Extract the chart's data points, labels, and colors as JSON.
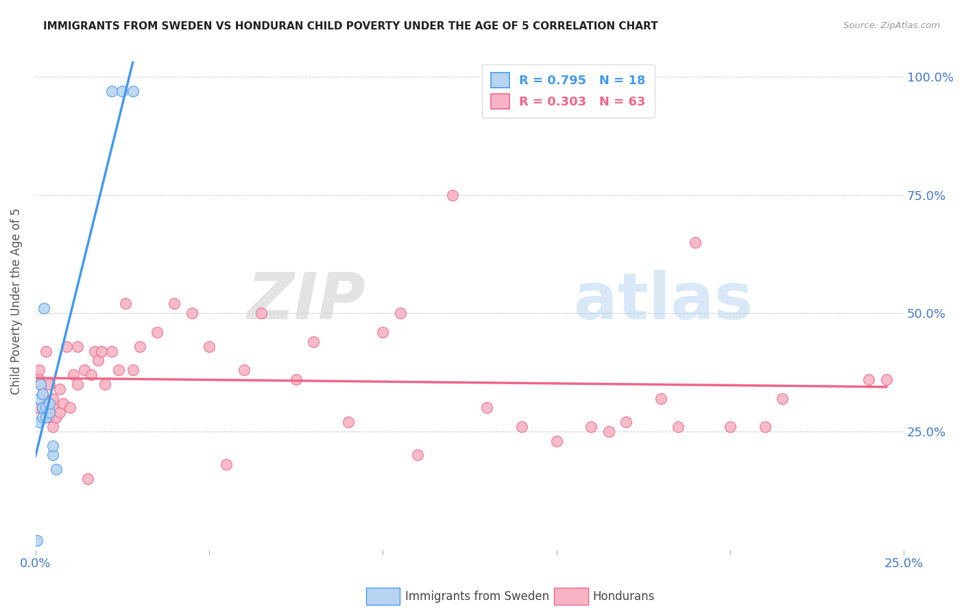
{
  "title": "IMMIGRANTS FROM SWEDEN VS HONDURAN CHILD POVERTY UNDER THE AGE OF 5 CORRELATION CHART",
  "source": "Source: ZipAtlas.com",
  "ylabel": "Child Poverty Under the Age of 5",
  "xlim": [
    0.0,
    0.25
  ],
  "ylim": [
    0.0,
    1.05
  ],
  "xtick_positions": [
    0.0,
    0.05,
    0.1,
    0.15,
    0.2,
    0.25
  ],
  "xticklabels": [
    "0.0%",
    "",
    "",
    "",
    "",
    "25.0%"
  ],
  "ytick_positions": [
    0.0,
    0.25,
    0.5,
    0.75,
    1.0
  ],
  "ytick_right_labels": [
    "",
    "25.0%",
    "50.0%",
    "75.0%",
    "100.0%"
  ],
  "sweden_R": 0.795,
  "sweden_N": 18,
  "honduran_R": 0.303,
  "honduran_N": 63,
  "sweden_color": "#b8d4f0",
  "honduran_color": "#f8b4c4",
  "sweden_line_color": "#4499ee",
  "honduran_line_color": "#ee6688",
  "legend_label_sweden": "Immigrants from Sweden",
  "legend_label_honduran": "Hondurans",
  "watermark_text": "ZIPatlas",
  "sweden_x": [
    0.0005,
    0.001,
    0.001,
    0.0015,
    0.002,
    0.002,
    0.002,
    0.0025,
    0.003,
    0.003,
    0.004,
    0.004,
    0.005,
    0.005,
    0.006,
    0.022,
    0.025,
    0.028
  ],
  "sweden_y": [
    0.02,
    0.27,
    0.32,
    0.35,
    0.28,
    0.3,
    0.33,
    0.51,
    0.28,
    0.3,
    0.29,
    0.31,
    0.2,
    0.22,
    0.17,
    0.97,
    0.97,
    0.97
  ],
  "honduran_x": [
    0.0005,
    0.001,
    0.001,
    0.0015,
    0.002,
    0.002,
    0.003,
    0.003,
    0.003,
    0.004,
    0.004,
    0.005,
    0.005,
    0.005,
    0.006,
    0.007,
    0.007,
    0.008,
    0.009,
    0.01,
    0.011,
    0.012,
    0.012,
    0.014,
    0.015,
    0.016,
    0.017,
    0.018,
    0.019,
    0.02,
    0.022,
    0.024,
    0.026,
    0.028,
    0.03,
    0.035,
    0.04,
    0.045,
    0.05,
    0.055,
    0.06,
    0.065,
    0.075,
    0.08,
    0.09,
    0.1,
    0.105,
    0.11,
    0.12,
    0.13,
    0.14,
    0.15,
    0.16,
    0.165,
    0.17,
    0.18,
    0.185,
    0.19,
    0.2,
    0.21,
    0.215,
    0.24,
    0.245
  ],
  "honduran_y": [
    0.3,
    0.38,
    0.36,
    0.35,
    0.3,
    0.33,
    0.28,
    0.31,
    0.42,
    0.28,
    0.35,
    0.26,
    0.3,
    0.32,
    0.28,
    0.29,
    0.34,
    0.31,
    0.43,
    0.3,
    0.37,
    0.35,
    0.43,
    0.38,
    0.15,
    0.37,
    0.42,
    0.4,
    0.42,
    0.35,
    0.42,
    0.38,
    0.52,
    0.38,
    0.43,
    0.46,
    0.52,
    0.5,
    0.43,
    0.18,
    0.38,
    0.5,
    0.36,
    0.44,
    0.27,
    0.46,
    0.5,
    0.2,
    0.75,
    0.3,
    0.26,
    0.23,
    0.26,
    0.25,
    0.27,
    0.32,
    0.26,
    0.65,
    0.26,
    0.26,
    0.32,
    0.36,
    0.36
  ]
}
